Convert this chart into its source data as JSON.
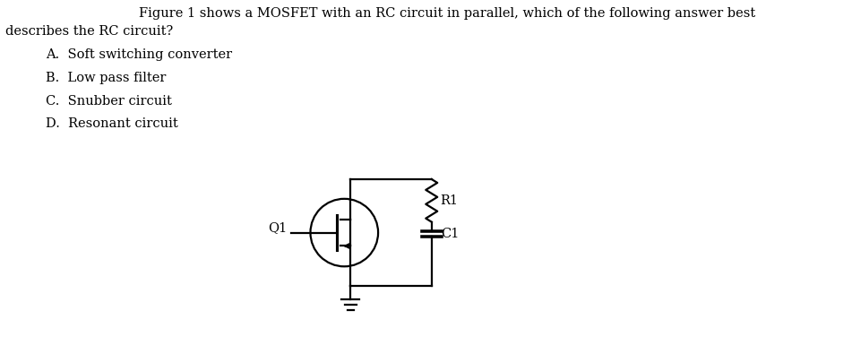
{
  "title_line1": "Figure 1 shows a MOSFET with an RC circuit in parallel, which of the following answer best",
  "title_line2": "describes the RC circuit?",
  "options": [
    "A.  Soft switching converter",
    "B.  Low pass filter",
    "C.  Snubber circuit",
    "D.  Resonant circuit"
  ],
  "q1_label": "Q1",
  "r1_label": "R1",
  "c1_label": "C1",
  "bg_color": "#ffffff",
  "text_color": "#000000",
  "line_color": "#000000",
  "font_size_title": 10.5,
  "font_size_options": 10.5,
  "font_size_labels": 10.5
}
